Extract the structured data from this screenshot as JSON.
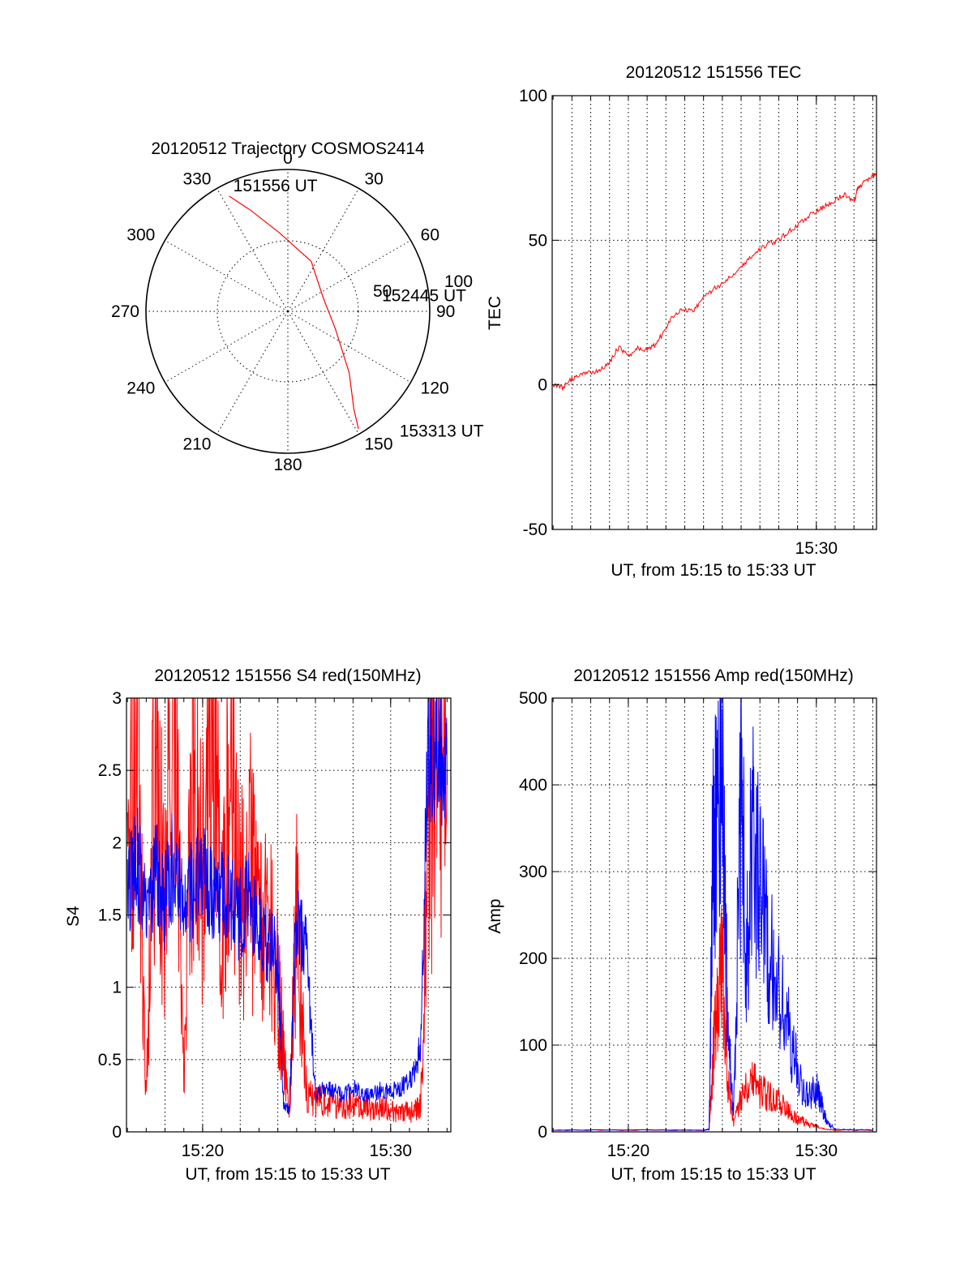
{
  "chart_data": [
    {
      "id": "trajectory",
      "type": "polar",
      "title": "20120512 Trajectory COSMOS2414",
      "angle_labels": [
        "0",
        "30",
        "60",
        "90",
        "120",
        "150",
        "180",
        "210",
        "240",
        "270",
        "300",
        "330"
      ],
      "radius_labels": [
        "50",
        "100"
      ],
      "track": {
        "color": "#ff0000",
        "points": [
          {
            "az": 333,
            "el": 8
          },
          {
            "az": 340,
            "el": 22
          },
          {
            "az": 354,
            "el": 40
          },
          {
            "az": 25,
            "el": 55
          },
          {
            "az": 70,
            "el": 66
          },
          {
            "az": 110,
            "el": 58
          },
          {
            "az": 135,
            "el": 35
          },
          {
            "az": 146,
            "el": 15
          },
          {
            "az": 149,
            "el": 3
          }
        ]
      },
      "annotations": [
        {
          "text": "151556 UT",
          "az": 335,
          "el": 2
        },
        {
          "text": "152445 UT",
          "az": 80,
          "el": 32
        },
        {
          "text": "153313 UT",
          "az": 138,
          "el": -12
        }
      ]
    },
    {
      "id": "tec",
      "type": "line",
      "title": "20120512 151556 TEC",
      "xlabel": "UT, from 15:15 to 15:33 UT",
      "ylabel": "TEC",
      "xlim": [
        15.95,
        33.2
      ],
      "ylim": [
        -50,
        100
      ],
      "yticks": [
        -50,
        0,
        50,
        100
      ],
      "xtick_labels": [
        {
          "x": 30,
          "label": "15:30"
        }
      ],
      "vertical_grid_x": [
        16,
        17,
        18,
        19,
        20,
        21,
        22,
        23,
        24,
        25,
        26,
        27,
        28,
        29,
        30,
        31,
        32,
        33
      ],
      "series": [
        {
          "color": "#ff0000",
          "x": [
            16.0,
            16.5,
            17.0,
            17.5,
            18.0,
            18.5,
            19.0,
            19.5,
            20.0,
            20.5,
            21.0,
            21.5,
            22.0,
            22.5,
            23.0,
            23.5,
            24.0,
            24.5,
            25.0,
            25.5,
            26.0,
            26.5,
            27.0,
            27.5,
            28.0,
            28.5,
            29.0,
            29.5,
            30.0,
            30.5,
            31.0,
            31.5,
            32.0,
            32.2,
            32.5,
            33.0,
            33.2
          ],
          "y": [
            0,
            -1,
            2,
            4,
            4,
            5,
            8,
            13,
            10,
            13,
            12,
            14,
            20,
            25,
            26,
            26,
            30,
            33,
            35,
            38,
            41,
            44,
            47,
            49,
            50,
            53,
            55,
            58,
            60,
            62,
            64,
            66,
            63,
            68,
            70,
            72,
            73
          ]
        }
      ]
    },
    {
      "id": "s4",
      "type": "line",
      "title": "20120512 151556 S4 red(150MHz)",
      "xlabel": "UT, from 15:15 to 15:33 UT",
      "ylabel": "S4",
      "xlim": [
        15.95,
        33.2
      ],
      "ylim": [
        0,
        3
      ],
      "yticks": [
        0,
        0.5,
        1,
        1.5,
        2,
        2.5,
        3
      ],
      "ytick_labels": [
        "0",
        "0.5",
        "1",
        "1.5",
        "2",
        "2.5",
        "3"
      ],
      "xtick_labels": [
        {
          "x": 20,
          "label": "15:20"
        },
        {
          "x": 30,
          "label": "15:30"
        }
      ],
      "vertical_grid_x": [
        18,
        20,
        22,
        24,
        26,
        28,
        30,
        32
      ],
      "series": [
        {
          "color": "#ff0000",
          "x": [
            16.0,
            16.5,
            17.0,
            17.5,
            18.0,
            18.5,
            19.0,
            19.5,
            20.0,
            20.5,
            21.0,
            21.5,
            22.0,
            22.5,
            23.0,
            23.5,
            24.0,
            24.3,
            24.6,
            25.0,
            25.5,
            26.0,
            26.5,
            27.0,
            27.5,
            28.0,
            28.5,
            29.0,
            29.5,
            30.0,
            30.5,
            31.0,
            31.3,
            31.6,
            32.0,
            32.5,
            33.0
          ],
          "y": [
            1.6,
            3.0,
            0.2,
            2.8,
            1.5,
            3.0,
            0.4,
            2.5,
            1.7,
            3.0,
            1.4,
            2.6,
            1.5,
            1.9,
            1.3,
            1.4,
            1.0,
            0.55,
            0.1,
            1.6,
            0.3,
            0.2,
            0.22,
            0.18,
            0.2,
            0.17,
            0.18,
            0.15,
            0.17,
            0.14,
            0.15,
            0.13,
            0.15,
            0.2,
            2.0,
            2.8,
            2.5
          ]
        },
        {
          "color": "#0000ff",
          "x": [
            16.0,
            16.5,
            17.0,
            17.5,
            18.0,
            18.5,
            19.0,
            19.5,
            20.0,
            20.5,
            21.0,
            21.5,
            22.0,
            22.5,
            23.0,
            23.5,
            24.0,
            24.3,
            24.6,
            25.0,
            25.5,
            26.0,
            26.5,
            27.0,
            27.5,
            28.0,
            28.5,
            29.0,
            29.5,
            30.0,
            30.5,
            31.0,
            31.3,
            31.6,
            32.0,
            32.5,
            33.0
          ],
          "y": [
            1.7,
            1.9,
            1.5,
            1.8,
            1.6,
            1.9,
            1.6,
            1.7,
            1.8,
            1.6,
            1.7,
            1.6,
            1.5,
            1.6,
            1.4,
            1.3,
            1.2,
            0.2,
            0.15,
            1.5,
            1.3,
            0.25,
            0.3,
            0.28,
            0.25,
            0.3,
            0.27,
            0.25,
            0.3,
            0.28,
            0.3,
            0.35,
            0.45,
            0.6,
            2.7,
            2.6,
            2.4
          ]
        }
      ]
    },
    {
      "id": "amp",
      "type": "line",
      "title": "20120512 151556 Amp red(150MHz)",
      "xlabel": "UT, from 15:15 to 15:33 UT",
      "ylabel": "Amp",
      "xlim": [
        15.95,
        33.2
      ],
      "ylim": [
        0,
        500
      ],
      "yticks": [
        0,
        100,
        200,
        300,
        400,
        500
      ],
      "xtick_labels": [
        {
          "x": 20,
          "label": "15:20"
        },
        {
          "x": 30,
          "label": "15:30"
        }
      ],
      "vertical_grid_x": [
        16,
        17,
        18,
        19,
        20,
        21,
        22,
        23,
        24,
        25,
        26,
        27,
        28,
        29,
        30,
        31,
        32,
        33
      ],
      "series": [
        {
          "color": "#ff0000",
          "x": [
            16.0,
            24.0,
            24.3,
            24.5,
            24.7,
            25.0,
            25.3,
            25.6,
            26.0,
            26.5,
            27.0,
            27.5,
            28.0,
            28.5,
            29.0,
            29.5,
            30.0,
            30.5,
            31.0,
            33.0
          ],
          "y": [
            2,
            2,
            3,
            80,
            160,
            190,
            60,
            10,
            40,
            70,
            50,
            40,
            35,
            25,
            15,
            10,
            6,
            3,
            2,
            2
          ]
        },
        {
          "color": "#0000ff",
          "x": [
            16.0,
            24.0,
            24.3,
            24.5,
            24.7,
            25.0,
            25.3,
            25.6,
            26.0,
            26.3,
            26.6,
            27.0,
            27.5,
            28.0,
            28.5,
            29.0,
            29.5,
            30.0,
            30.3,
            30.6,
            31.0,
            33.0
          ],
          "y": [
            2,
            2,
            3,
            350,
            340,
            400,
            130,
            20,
            385,
            200,
            355,
            280,
            200,
            160,
            120,
            70,
            40,
            50,
            30,
            10,
            3,
            2
          ]
        }
      ]
    }
  ]
}
